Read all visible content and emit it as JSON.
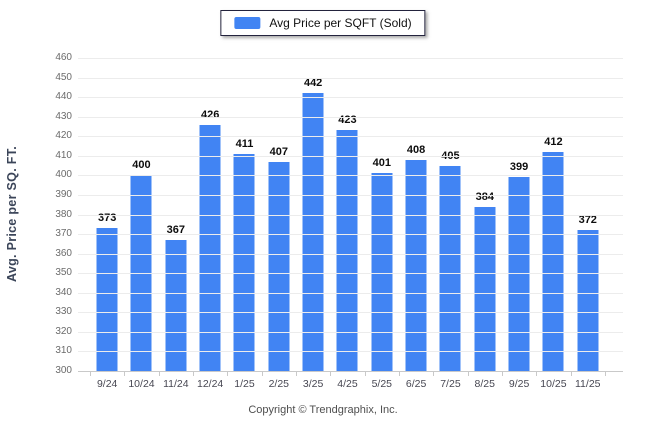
{
  "legend": {
    "label": "Avg Price per SQFT (Sold)",
    "swatch_color": "#4184f3"
  },
  "chart_data": {
    "type": "bar",
    "title": "",
    "xlabel": "",
    "ylabel": "Avg. Price per SQ. FT.",
    "categories": [
      "9/24",
      "10/24",
      "11/24",
      "12/24",
      "1/25",
      "2/25",
      "3/25",
      "4/25",
      "5/25",
      "6/25",
      "7/25",
      "8/25",
      "9/25",
      "10/25",
      "11/25"
    ],
    "values": [
      373,
      400,
      367,
      426,
      411,
      407,
      442,
      423,
      401,
      408,
      405,
      384,
      399,
      412,
      372
    ],
    "ylim": [
      300,
      460
    ],
    "yticks": [
      300,
      310,
      320,
      330,
      340,
      350,
      360,
      370,
      380,
      390,
      400,
      410,
      420,
      430,
      440,
      450,
      460
    ],
    "grid": true,
    "legend_position": "top",
    "legend_entries": [
      "Avg Price per SQFT (Sold)"
    ],
    "bar_color": "#4184f3",
    "value_labels": true
  },
  "colors": {
    "bar": "#4184f3",
    "grid": "#ececec",
    "axis": "#c9c9c9",
    "background": "#ffffff"
  },
  "footer": {
    "copyright": "Copyright © Trendgraphix, Inc."
  }
}
